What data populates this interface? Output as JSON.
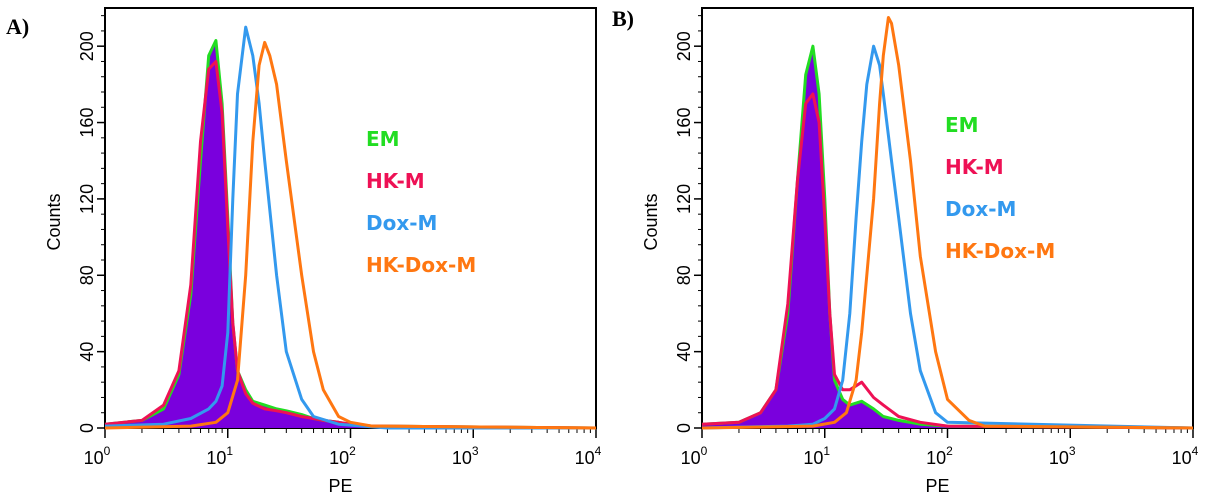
{
  "chart_data": [
    {
      "type": "area",
      "panel_label": "A)",
      "xlabel": "PE",
      "ylabel": "Counts",
      "xscale": "log",
      "xlim": [
        1,
        10000
      ],
      "ylim": [
        0,
        220
      ],
      "x_ticks": [
        {
          "base": "10",
          "exp": "0"
        },
        {
          "base": "10",
          "exp": "1"
        },
        {
          "base": "10",
          "exp": "2"
        },
        {
          "base": "10",
          "exp": "3"
        },
        {
          "base": "10",
          "exp": "4"
        }
      ],
      "y_ticks": [
        "0",
        "40",
        "80",
        "120",
        "160",
        "200"
      ],
      "grid": false,
      "legend_position": "right",
      "series": [
        {
          "name": "EM",
          "color": "#22dd22",
          "points": [
            [
              1,
              2
            ],
            [
              2,
              4
            ],
            [
              3,
              10
            ],
            [
              4,
              28
            ],
            [
              5,
              70
            ],
            [
              6,
              140
            ],
            [
              7,
              195
            ],
            [
              8,
              203
            ],
            [
              9,
              170
            ],
            [
              10,
              110
            ],
            [
              11,
              55
            ],
            [
              12,
              30
            ],
            [
              14,
              20
            ],
            [
              16,
              14
            ],
            [
              20,
              12
            ],
            [
              25,
              10
            ],
            [
              30,
              9
            ],
            [
              40,
              7
            ],
            [
              50,
              5
            ],
            [
              60,
              4
            ],
            [
              80,
              3
            ],
            [
              100,
              2
            ],
            [
              150,
              1
            ],
            [
              10000,
              0
            ]
          ]
        },
        {
          "name": "HK-M",
          "color": "#ee1155",
          "points": [
            [
              1,
              2
            ],
            [
              2,
              4
            ],
            [
              3,
              12
            ],
            [
              4,
              30
            ],
            [
              5,
              75
            ],
            [
              6,
              150
            ],
            [
              7,
              188
            ],
            [
              8,
              192
            ],
            [
              9,
              165
            ],
            [
              10,
              105
            ],
            [
              11,
              55
            ],
            [
              12,
              30
            ],
            [
              14,
              18
            ],
            [
              16,
              13
            ],
            [
              20,
              10
            ],
            [
              25,
              9
            ],
            [
              30,
              8
            ],
            [
              40,
              6
            ],
            [
              50,
              5
            ],
            [
              60,
              4
            ],
            [
              80,
              3
            ],
            [
              100,
              2
            ],
            [
              150,
              1
            ],
            [
              10000,
              0
            ]
          ]
        },
        {
          "name": "Dox-M",
          "color": "#3399ee",
          "points": [
            [
              1,
              1
            ],
            [
              3,
              2
            ],
            [
              5,
              5
            ],
            [
              7,
              10
            ],
            [
              8,
              14
            ],
            [
              9,
              22
            ],
            [
              10,
              50
            ],
            [
              11,
              120
            ],
            [
              12,
              175
            ],
            [
              14,
              210
            ],
            [
              16,
              195
            ],
            [
              18,
              170
            ],
            [
              20,
              140
            ],
            [
              25,
              80
            ],
            [
              30,
              40
            ],
            [
              40,
              15
            ],
            [
              50,
              6
            ],
            [
              80,
              2
            ],
            [
              200,
              0
            ],
            [
              10000,
              0
            ]
          ]
        },
        {
          "name": "HK-Dox-M",
          "color": "#ff7711",
          "points": [
            [
              1,
              0
            ],
            [
              5,
              1
            ],
            [
              8,
              3
            ],
            [
              10,
              8
            ],
            [
              12,
              25
            ],
            [
              14,
              80
            ],
            [
              16,
              150
            ],
            [
              18,
              190
            ],
            [
              20,
              202
            ],
            [
              22,
              195
            ],
            [
              25,
              180
            ],
            [
              30,
              140
            ],
            [
              40,
              80
            ],
            [
              50,
              40
            ],
            [
              60,
              20
            ],
            [
              80,
              6
            ],
            [
              100,
              3
            ],
            [
              150,
              1
            ],
            [
              10000,
              0
            ]
          ]
        }
      ],
      "fill": {
        "series": "EM",
        "color": "#7a00dd"
      }
    },
    {
      "type": "area",
      "panel_label": "B)",
      "xlabel": "PE",
      "ylabel": "Counts",
      "xscale": "log",
      "xlim": [
        1,
        10000
      ],
      "ylim": [
        0,
        220
      ],
      "x_ticks": [
        {
          "base": "10",
          "exp": "0"
        },
        {
          "base": "10",
          "exp": "1"
        },
        {
          "base": "10",
          "exp": "2"
        },
        {
          "base": "10",
          "exp": "3"
        },
        {
          "base": "10",
          "exp": "4"
        }
      ],
      "y_ticks": [
        "0",
        "40",
        "80",
        "120",
        "160",
        "200"
      ],
      "grid": false,
      "legend_position": "right",
      "series": [
        {
          "name": "EM",
          "color": "#22dd22",
          "points": [
            [
              1,
              2
            ],
            [
              2,
              3
            ],
            [
              3,
              8
            ],
            [
              4,
              20
            ],
            [
              5,
              60
            ],
            [
              6,
              130
            ],
            [
              7,
              185
            ],
            [
              8,
              200
            ],
            [
              9,
              175
            ],
            [
              10,
              120
            ],
            [
              11,
              60
            ],
            [
              12,
              25
            ],
            [
              14,
              15
            ],
            [
              16,
              12
            ],
            [
              20,
              14
            ],
            [
              25,
              10
            ],
            [
              30,
              6
            ],
            [
              40,
              4
            ],
            [
              60,
              2
            ],
            [
              100,
              1
            ],
            [
              10000,
              0
            ]
          ]
        },
        {
          "name": "HK-M",
          "color": "#ee1155",
          "points": [
            [
              1,
              2
            ],
            [
              2,
              3
            ],
            [
              3,
              8
            ],
            [
              4,
              20
            ],
            [
              5,
              65
            ],
            [
              6,
              130
            ],
            [
              7,
              170
            ],
            [
              8,
              175
            ],
            [
              9,
              160
            ],
            [
              10,
              110
            ],
            [
              11,
              60
            ],
            [
              12,
              28
            ],
            [
              14,
              20
            ],
            [
              16,
              20
            ],
            [
              20,
              24
            ],
            [
              25,
              16
            ],
            [
              30,
              12
            ],
            [
              40,
              6
            ],
            [
              60,
              3
            ],
            [
              100,
              1
            ],
            [
              10000,
              0
            ]
          ]
        },
        {
          "name": "Dox-M",
          "color": "#3399ee",
          "points": [
            [
              1,
              0
            ],
            [
              5,
              1
            ],
            [
              8,
              2
            ],
            [
              10,
              5
            ],
            [
              12,
              10
            ],
            [
              14,
              25
            ],
            [
              16,
              60
            ],
            [
              18,
              110
            ],
            [
              20,
              150
            ],
            [
              22,
              180
            ],
            [
              25,
              200
            ],
            [
              28,
              190
            ],
            [
              30,
              175
            ],
            [
              35,
              140
            ],
            [
              40,
              110
            ],
            [
              50,
              60
            ],
            [
              60,
              30
            ],
            [
              80,
              8
            ],
            [
              100,
              3
            ],
            [
              10000,
              0
            ]
          ]
        },
        {
          "name": "HK-Dox-M",
          "color": "#ff7711",
          "points": [
            [
              1,
              0
            ],
            [
              8,
              1
            ],
            [
              12,
              3
            ],
            [
              15,
              8
            ],
            [
              18,
              25
            ],
            [
              20,
              50
            ],
            [
              25,
              120
            ],
            [
              28,
              170
            ],
            [
              30,
              195
            ],
            [
              33,
              215
            ],
            [
              35,
              212
            ],
            [
              40,
              190
            ],
            [
              50,
              140
            ],
            [
              60,
              90
            ],
            [
              80,
              40
            ],
            [
              100,
              15
            ],
            [
              150,
              4
            ],
            [
              200,
              1
            ],
            [
              10000,
              0
            ]
          ]
        }
      ],
      "fill": {
        "series": "EM",
        "color": "#7a00dd"
      }
    }
  ]
}
